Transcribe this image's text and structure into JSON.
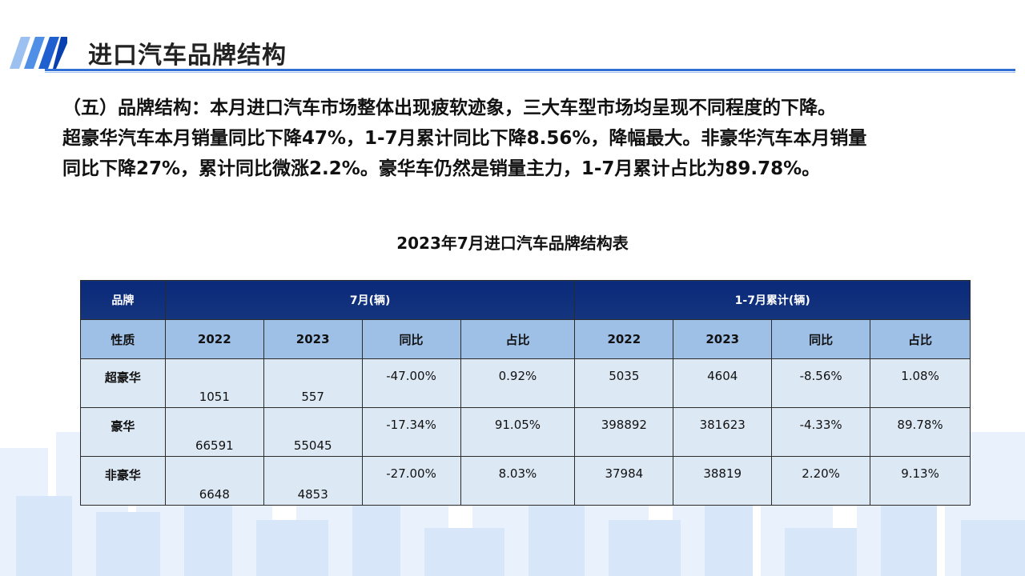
{
  "header": {
    "title": "进口汽车品牌结构"
  },
  "paragraph": [
    "（五）品牌结构：本月进口汽车市场整体出现疲软迹象，三大车型市场均呈现不同程度的下降。",
    "超豪华汽车本月销量同比下降47%，1-7月累计同比下降8.56%，降幅最大。非豪华汽车本月销量",
    "同比下降27%，累计同比微涨2.2%。豪华车仍然是销量主力，1-7月累计占比为89.78%。"
  ],
  "table": {
    "title": "2023年7月进口汽车品牌结构表",
    "head": {
      "brand": "品牌",
      "month": "7月(辆)",
      "cumulative": "1-7月累计(辆)"
    },
    "sub": {
      "nature": "性质",
      "cols": [
        "2022",
        "2023",
        "同比",
        "占比",
        "2022",
        "2023",
        "同比",
        "占比"
      ]
    },
    "rows": [
      {
        "name": "超豪华",
        "cells": [
          "1051",
          "557",
          "-47.00%",
          "0.92%",
          "5035",
          "4604",
          "-8.56%",
          "1.08%"
        ]
      },
      {
        "name": "豪华",
        "cells": [
          "66591",
          "55045",
          "-17.34%",
          "91.05%",
          "398892",
          "381623",
          "-4.33%",
          "89.78%"
        ]
      },
      {
        "name": "非豪华",
        "cells": [
          "6648",
          "4853",
          "-27.00%",
          "8.03%",
          "37984",
          "38819",
          "2.20%",
          "9.13%"
        ]
      }
    ]
  },
  "colors": {
    "accent": "#2f6fd6",
    "table_head": "#0a2a7a",
    "table_sub": "#9ec0e6",
    "table_row": "#dde8f5"
  }
}
